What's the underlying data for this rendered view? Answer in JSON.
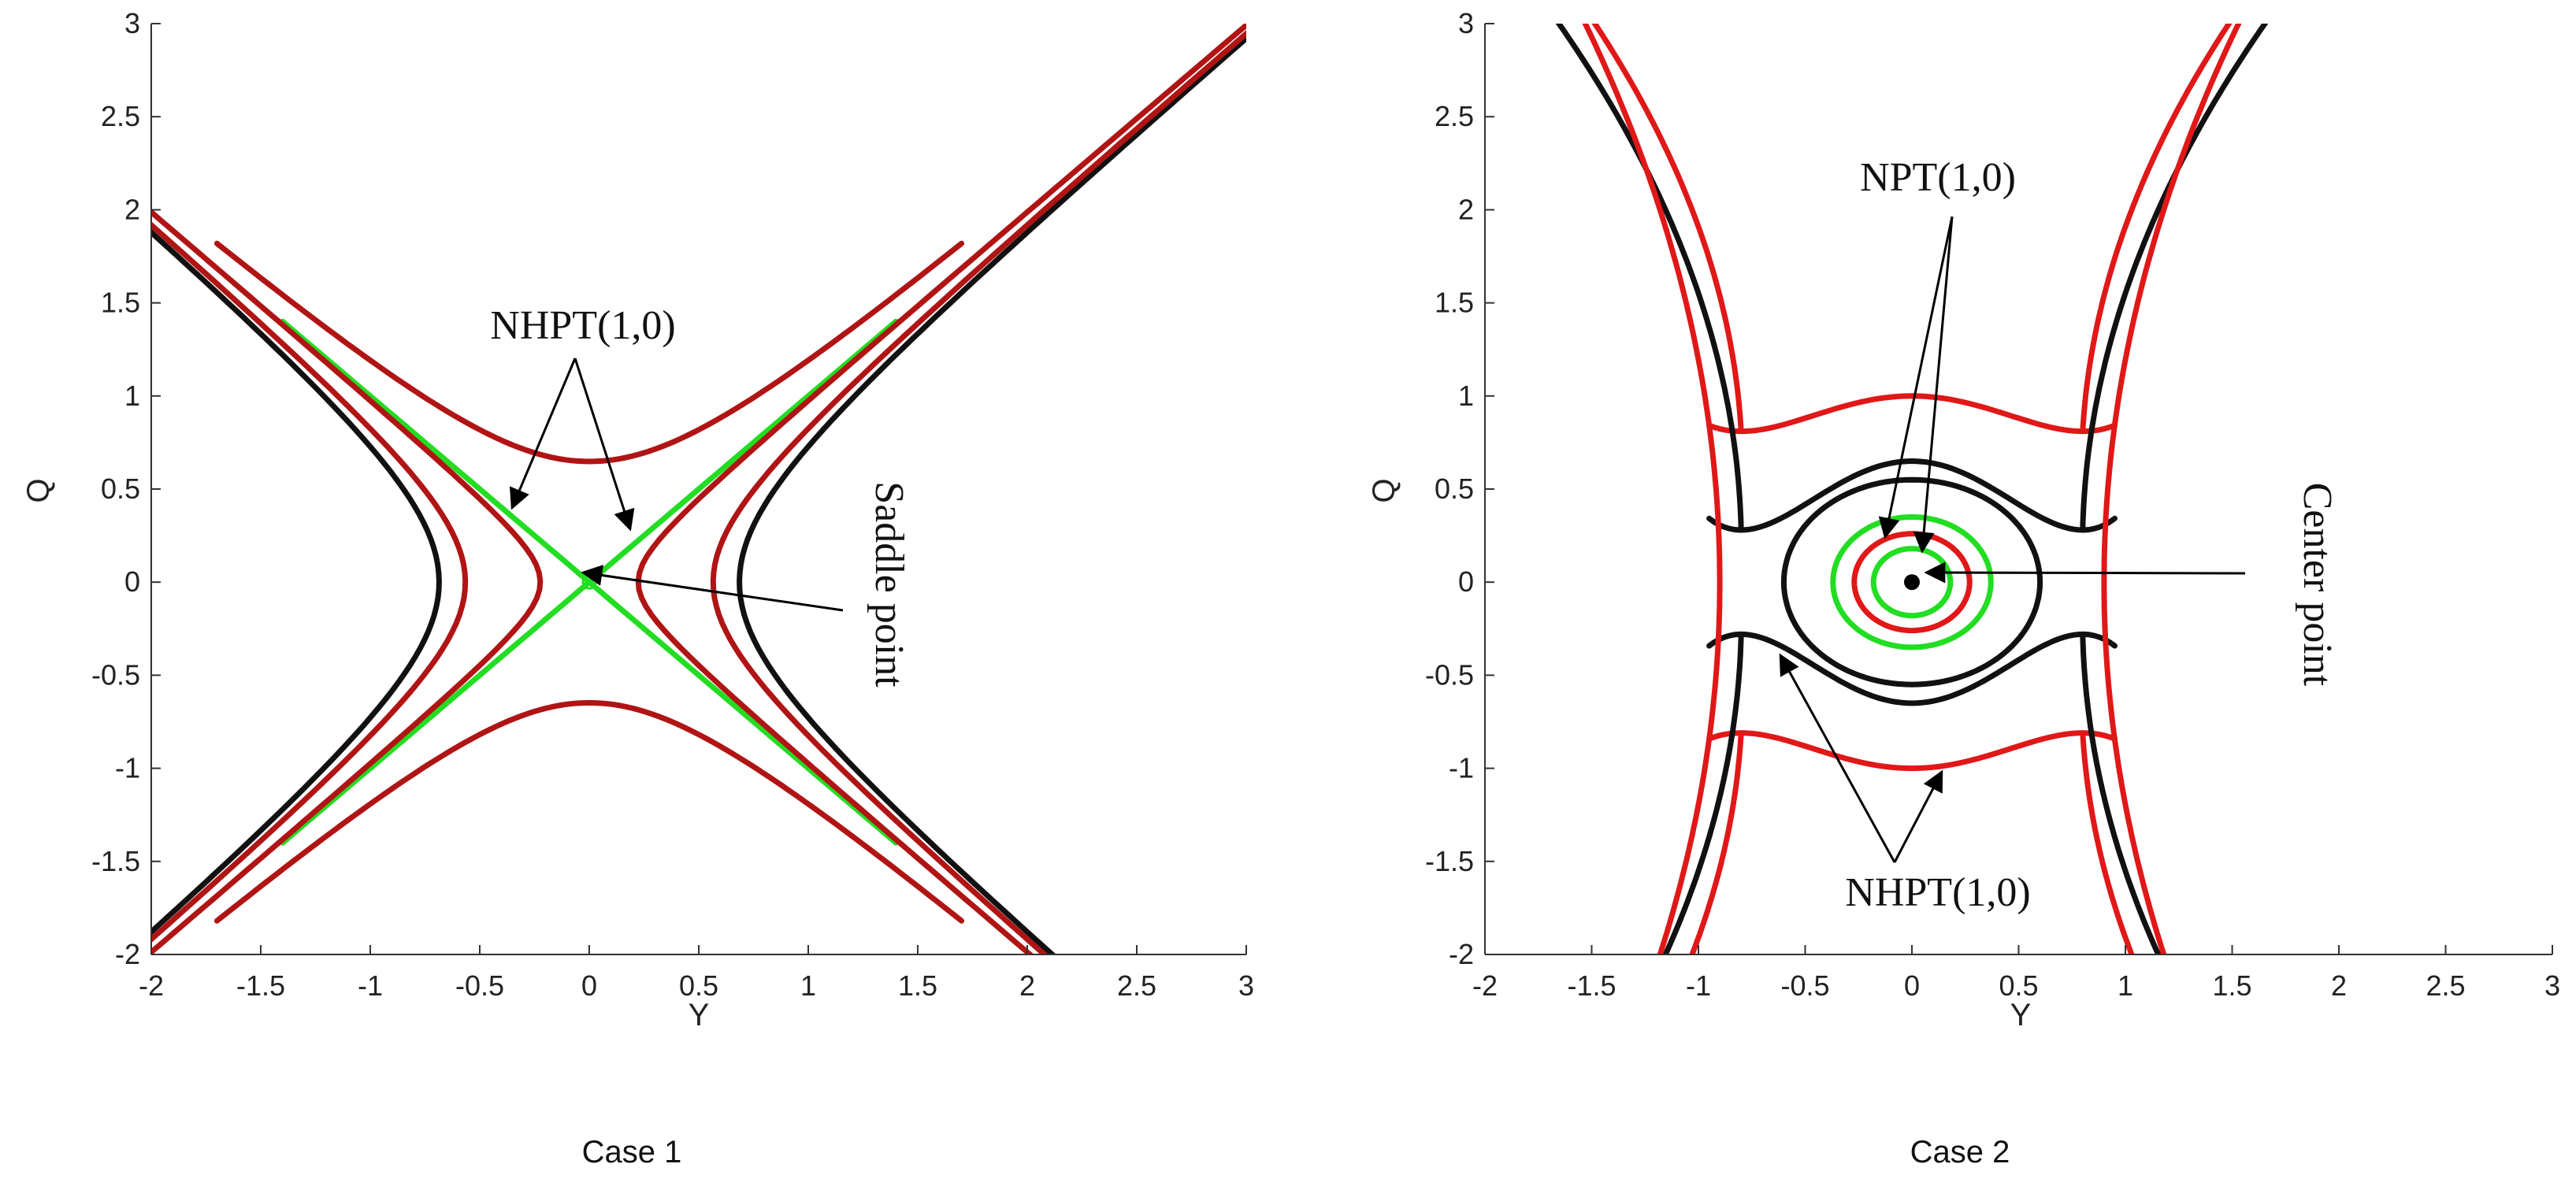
{
  "colors": {
    "dark_red": "#b01414",
    "red": "#e01818",
    "black": "#111111",
    "green": "#22dd22",
    "axis": "#333333"
  },
  "chart_data": [
    {
      "type": "line",
      "caption": "Case 1",
      "xlabel": "Y",
      "ylabel": "Q",
      "xlim": [
        -2,
        3
      ],
      "ylim": [
        -2,
        3
      ],
      "xticks": [
        "-2",
        "-1.5",
        "-1",
        "-0.5",
        "0",
        "0.5",
        "1",
        "1.5",
        "2",
        "2.5",
        "3"
      ],
      "yticks": [
        "-2",
        "-1.5",
        "-1",
        "-0.5",
        "0",
        "0.5",
        "1",
        "1.5",
        "2",
        "2.5",
        "3"
      ],
      "series": [
        {
          "name": "separatrix",
          "color": "green",
          "curve": "Q^2 - Y^2 = 0"
        },
        {
          "name": "outer-a",
          "color": "black",
          "curve": "Y^2 - Q^2 = 0.47"
        },
        {
          "name": "inner-a",
          "color": "dark_red",
          "curve": "Y^2 - Q^2 = 0.32"
        },
        {
          "name": "inner-b",
          "color": "dark_red",
          "curve": "Q^2 - Y^2 = 0.42"
        }
      ],
      "markers": [
        {
          "name": "saddle-point",
          "x": 0,
          "y": 0,
          "style": "open"
        }
      ],
      "annotations": {
        "nhpt": "NHPT(1,0)",
        "point_label": "Saddle point"
      }
    },
    {
      "type": "line",
      "caption": "Case 2",
      "xlabel": "Y",
      "ylabel": "Q",
      "xlim": [
        -2,
        3
      ],
      "ylim": [
        -2,
        3
      ],
      "xticks": [
        "-2",
        "-1.5",
        "-1",
        "-0.5",
        "0",
        "0.5",
        "1",
        "1.5",
        "2",
        "2.5",
        "3"
      ],
      "yticks": [
        "-2",
        "-1.5",
        "-1",
        "-0.5",
        "0",
        "0.5",
        "1",
        "1.5",
        "2",
        "2.5",
        "3"
      ],
      "series": [
        {
          "name": "orbit-1",
          "color": "green",
          "a": 0.18,
          "b": 0.18
        },
        {
          "name": "orbit-2",
          "color": "red",
          "a": 0.27,
          "b": 0.26
        },
        {
          "name": "orbit-3",
          "color": "green",
          "a": 0.37,
          "b": 0.35
        },
        {
          "name": "orbit-4",
          "color": "black",
          "a": 0.6,
          "b": 0.55
        },
        {
          "name": "nhpt-upper-black",
          "color": "black"
        },
        {
          "name": "nhpt-lower-black",
          "color": "black"
        },
        {
          "name": "nhpt-upper-red",
          "color": "red"
        },
        {
          "name": "nhpt-lower-red",
          "color": "red"
        },
        {
          "name": "side-left-red",
          "color": "red"
        },
        {
          "name": "side-right-red",
          "color": "red"
        }
      ],
      "markers": [
        {
          "name": "center-point",
          "x": 0,
          "y": 0,
          "style": "filled"
        }
      ],
      "annotations": {
        "npt": "NPT(1,0)",
        "nhpt": "NHPT(1,0)",
        "point_label": "Center point"
      }
    }
  ]
}
